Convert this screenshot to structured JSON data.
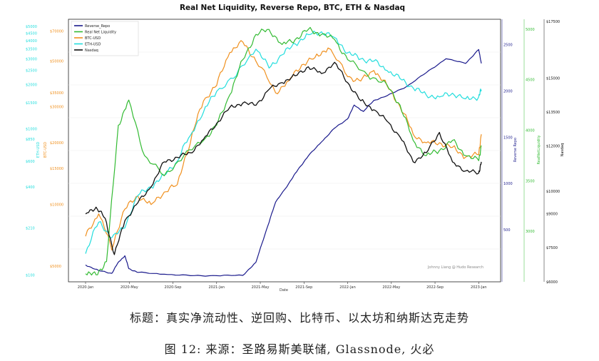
{
  "chart_data": {
    "type": "line",
    "title": "Real Net Liquidity, Reverse Repo, BTC, ETH & Nasdaq",
    "xlabel": "Date",
    "x_ticks": [
      "2020-Jan",
      "2020-May",
      "2020-Sep",
      "2021-Jan",
      "2021-May",
      "2021-Sep",
      "2022-Jan",
      "2022-May",
      "2022-Sep",
      "2023-Jan"
    ],
    "legend": [
      "Reverse_Repo",
      "Real Net Liquidity",
      "BTC-USD",
      "ETH-USD",
      "Nasdaq"
    ],
    "watermark": "Johnny Liang @ Hudo Research",
    "axes": {
      "eth": {
        "label": "ETH-USD",
        "color": "#22dddd",
        "ticks": [
          "$5000",
          "$4500",
          "$4000",
          "$3500",
          "$3000",
          "$2500",
          "$2000",
          "$1500",
          "$1000",
          "$850",
          "$600",
          "$400",
          "$210",
          "$100"
        ]
      },
      "btc": {
        "label": "BTC-USD",
        "color": "#f0901e",
        "ticks": [
          "$70000",
          "$50000",
          "$35000",
          "$30000",
          "$20000",
          "$15000",
          "$10000",
          "$5000"
        ]
      },
      "repo": {
        "label": "Reverse Repo",
        "color": "#1a1a8c",
        "ticks": [
          "2500",
          "2000",
          "1500",
          "1000",
          "500"
        ]
      },
      "liq": {
        "label": "RealNetLiquidity",
        "color": "#33bb33",
        "ticks": [
          "5000",
          "4500",
          "4000",
          "3500",
          "3000"
        ]
      },
      "nasdaq": {
        "label": "Nasdaq",
        "color": "#111111",
        "ticks": [
          "$17500",
          "$15000",
          "$13500",
          "$12000",
          "$10000",
          "$9000",
          "$7500",
          "$6000"
        ]
      }
    },
    "series": [
      {
        "name": "Reverse_Repo",
        "color": "#1a1a8c",
        "axis": "repo",
        "x": [
          2020.0,
          2020.1,
          2020.2,
          2020.25,
          2020.3,
          2020.33,
          2020.4,
          2020.6,
          2020.8,
          2021.0,
          2021.2,
          2021.3,
          2021.38,
          2021.45,
          2021.55,
          2021.62,
          2021.7,
          2021.8,
          2021.9,
          2022.0,
          2022.05,
          2022.12,
          2022.2,
          2022.3,
          2022.45,
          2022.6,
          2022.75,
          2022.9,
          2023.0,
          2023.02
        ],
        "values": [
          120,
          60,
          30,
          150,
          220,
          80,
          40,
          20,
          5,
          5,
          8,
          150,
          500,
          800,
          1000,
          1150,
          1300,
          1450,
          1600,
          1700,
          1850,
          1780,
          1900,
          1950,
          2050,
          2200,
          2350,
          2300,
          2450,
          2300
        ]
      },
      {
        "name": "Real Net Liquidity",
        "color": "#33bb33",
        "axis": "liq",
        "x": [
          2020.0,
          2020.08,
          2020.16,
          2020.25,
          2020.33,
          2020.45,
          2020.6,
          2020.75,
          2020.9,
          2021.0,
          2021.1,
          2021.2,
          2021.3,
          2021.4,
          2021.5,
          2021.6,
          2021.7,
          2021.8,
          2021.9,
          2022.0,
          2022.15,
          2022.3,
          2022.4,
          2022.5,
          2022.6,
          2022.7,
          2022.8,
          2022.9,
          2023.0,
          2023.02
        ],
        "values": [
          2580,
          2570,
          2700,
          4050,
          4300,
          3750,
          3550,
          3750,
          3900,
          4050,
          4350,
          4700,
          4950,
          5000,
          4850,
          4900,
          5000,
          4950,
          4900,
          4700,
          4550,
          4450,
          4250,
          3900,
          3750,
          3800,
          3900,
          3750,
          3700,
          3850
        ]
      },
      {
        "name": "BTC-USD",
        "color": "#f0901e",
        "axis": "btc",
        "x": [
          2020.0,
          2020.1,
          2020.2,
          2020.3,
          2020.4,
          2020.5,
          2020.6,
          2020.7,
          2020.8,
          2020.9,
          2021.0,
          2021.1,
          2021.2,
          2021.3,
          2021.45,
          2021.55,
          2021.65,
          2021.75,
          2021.85,
          2022.0,
          2022.1,
          2022.2,
          2022.3,
          2022.4,
          2022.5,
          2022.6,
          2022.7,
          2022.8,
          2022.9,
          2023.0,
          2023.02
        ],
        "values": [
          7000,
          9000,
          6000,
          9500,
          11000,
          10000,
          11500,
          12500,
          20000,
          32000,
          38000,
          55000,
          62000,
          50000,
          35000,
          40000,
          48000,
          52000,
          58000,
          42000,
          40000,
          45000,
          38000,
          30000,
          22000,
          20000,
          20000,
          19000,
          17000,
          17500,
          22000
        ]
      },
      {
        "name": "ETH-USD",
        "color": "#22dddd",
        "axis": "eth",
        "x": [
          2020.0,
          2020.1,
          2020.2,
          2020.3,
          2020.4,
          2020.5,
          2020.6,
          2020.7,
          2020.8,
          2020.9,
          2021.0,
          2021.15,
          2021.3,
          2021.4,
          2021.5,
          2021.6,
          2021.7,
          2021.8,
          2021.9,
          2022.0,
          2022.1,
          2022.2,
          2022.3,
          2022.4,
          2022.5,
          2022.6,
          2022.7,
          2022.8,
          2022.9,
          2023.0,
          2023.02
        ],
        "values": [
          140,
          230,
          180,
          210,
          350,
          400,
          480,
          600,
          900,
          1300,
          1800,
          2300,
          3500,
          2600,
          3200,
          3800,
          4400,
          4600,
          4200,
          3300,
          3000,
          2900,
          2500,
          2200,
          1900,
          1700,
          1650,
          1750,
          1600,
          1650,
          1850
        ]
      },
      {
        "name": "Nasdaq",
        "color": "#111111",
        "axis": "nasdaq",
        "x": [
          2020.0,
          2020.08,
          2020.15,
          2020.22,
          2020.3,
          2020.4,
          2020.5,
          2020.6,
          2020.7,
          2020.8,
          2020.9,
          2021.0,
          2021.1,
          2021.2,
          2021.3,
          2021.4,
          2021.5,
          2021.6,
          2021.7,
          2021.8,
          2021.9,
          2022.0,
          2022.1,
          2022.2,
          2022.3,
          2022.4,
          2022.5,
          2022.6,
          2022.7,
          2022.8,
          2022.9,
          2023.0,
          2023.02
        ],
        "values": [
          9000,
          9300,
          8800,
          7200,
          8700,
          9500,
          10200,
          11300,
          11500,
          11700,
          12300,
          13000,
          13700,
          13900,
          13800,
          14500,
          14800,
          15100,
          15500,
          15200,
          15700,
          14800,
          14000,
          13600,
          13100,
          12400,
          11300,
          11700,
          12600,
          11300,
          10900,
          10800,
          11300
        ]
      }
    ]
  },
  "caption": {
    "title": "标题：真实净流动性、逆回购、比特币、以太坊和纳斯达克走势",
    "source": "图 12: 来源：圣路易斯美联储, Glassnode, 火必"
  }
}
